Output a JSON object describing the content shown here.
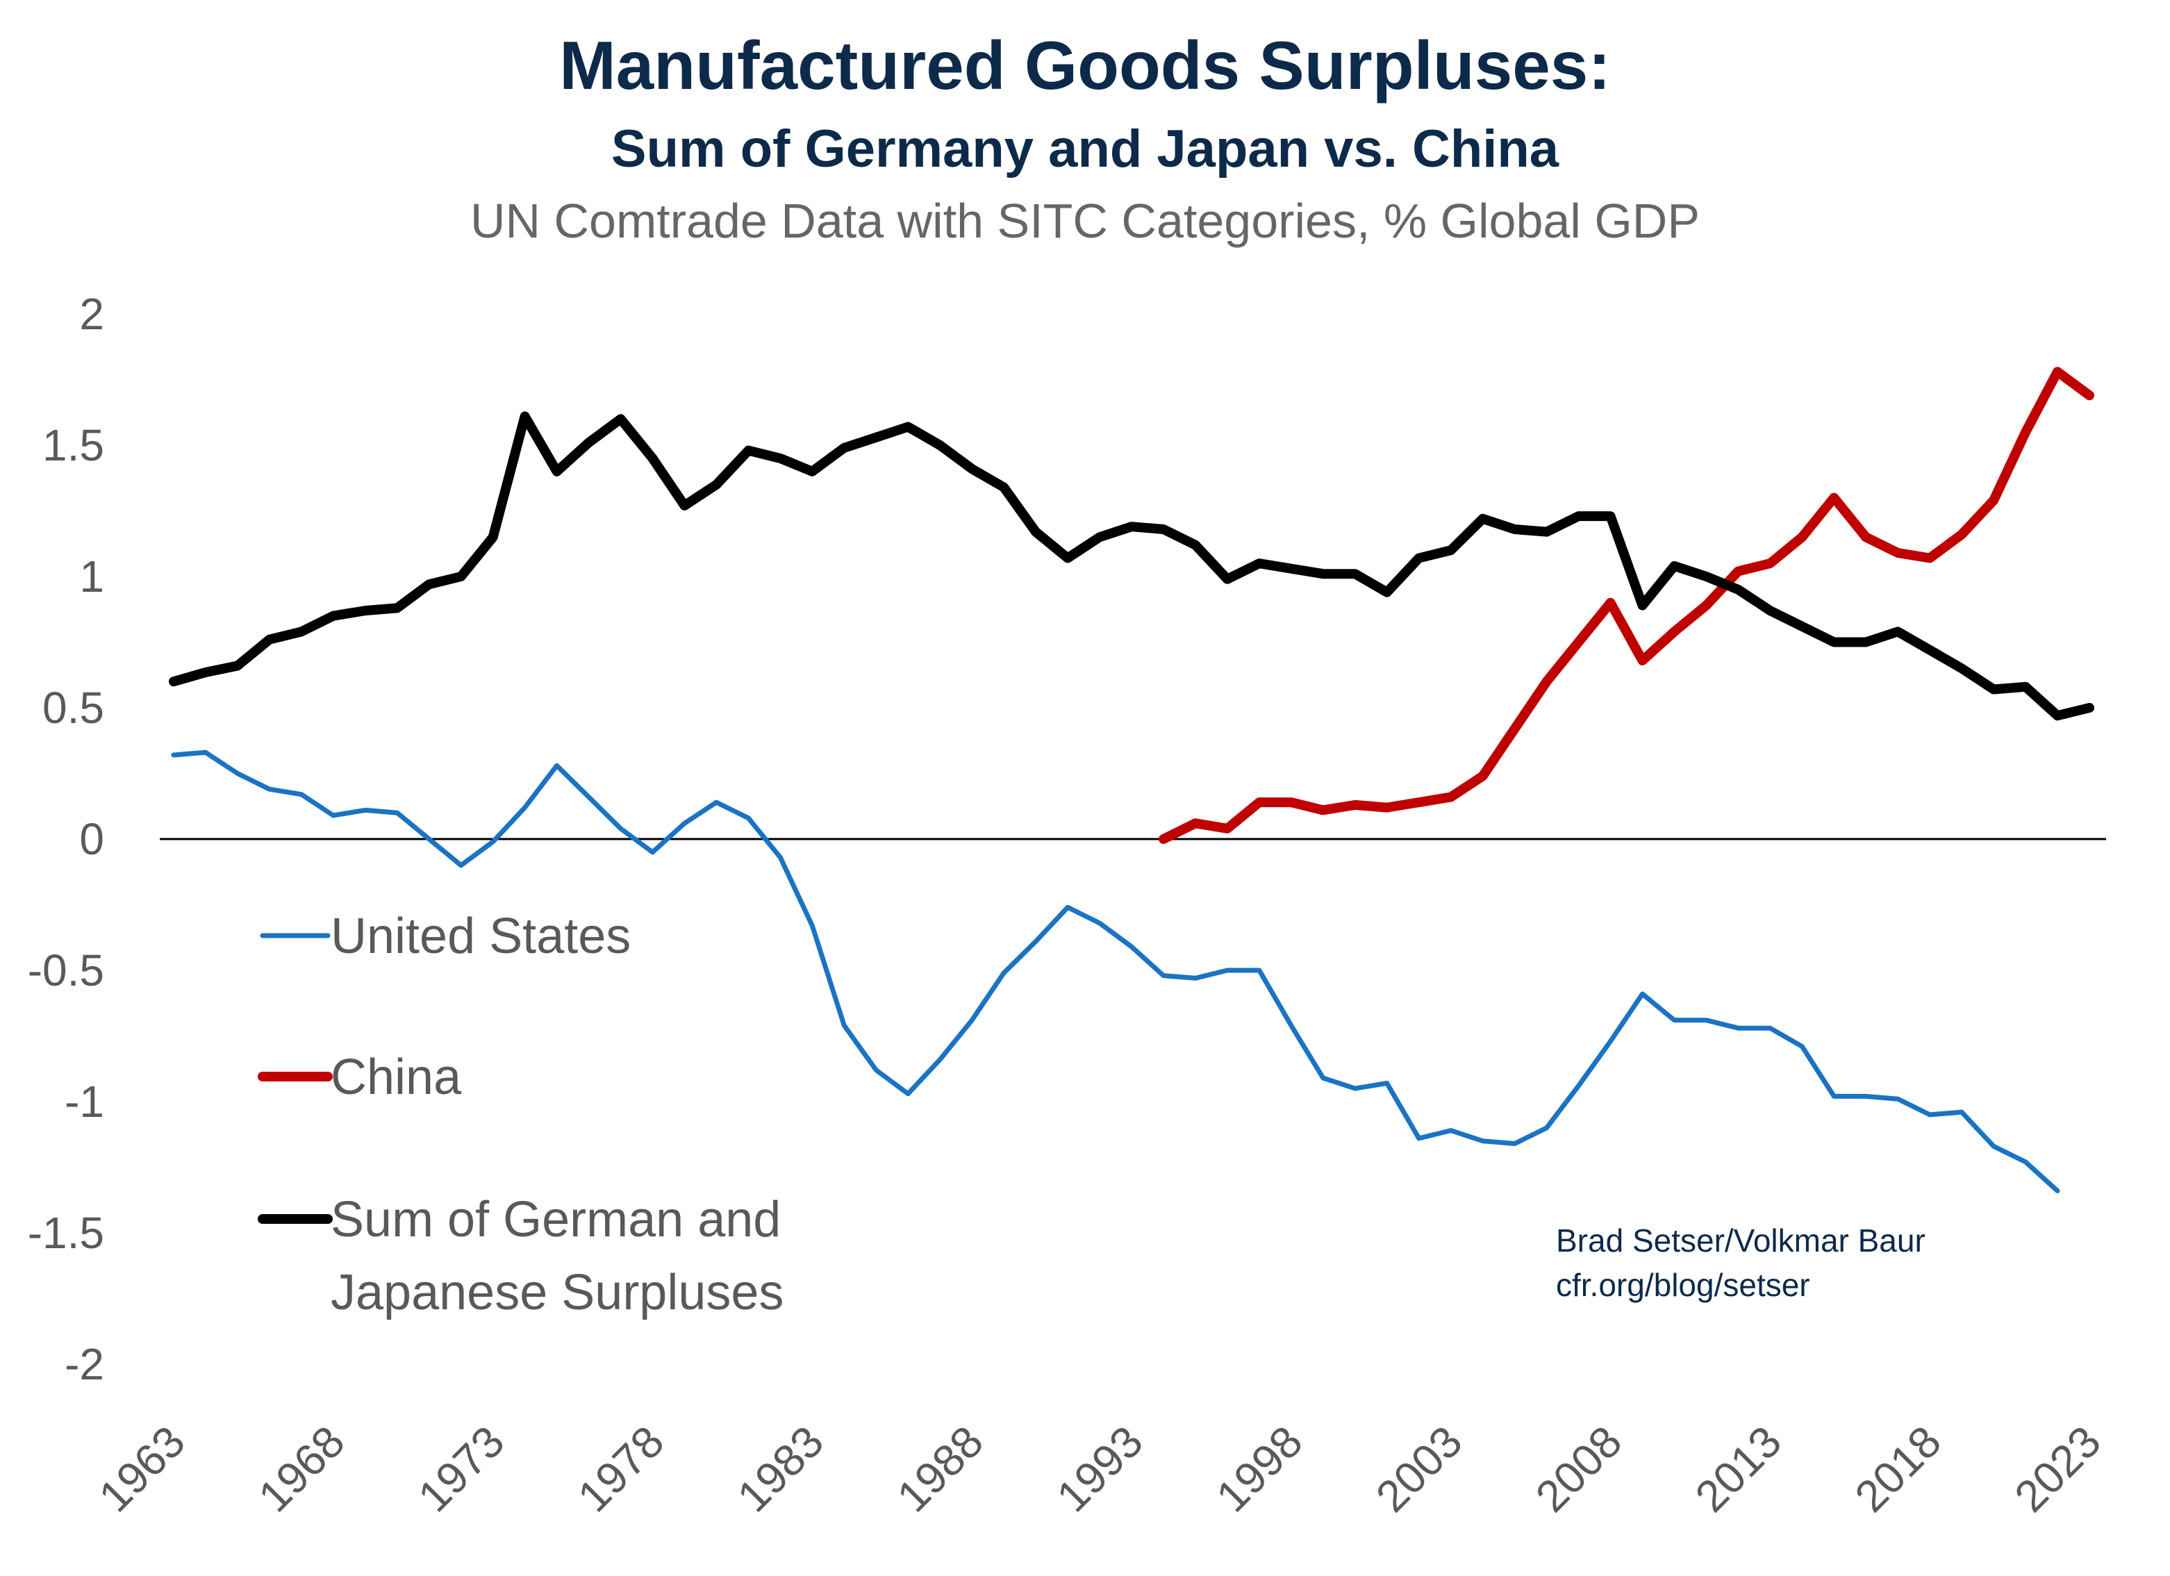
{
  "chart_data": {
    "type": "line",
    "title": "Manufactured Goods Surpluses:",
    "subtitle": "Sum of Germany and Japan vs. China",
    "subtitle2": "UN Comtrade Data with SITC Categories, % Global GDP",
    "xlabel": "",
    "ylabel": "",
    "xlim": [
      1963,
      2023
    ],
    "ylim": [
      -2,
      2
    ],
    "y_ticks": [
      "2",
      "1.5",
      "1",
      "0.5",
      "0",
      "-0.5",
      "-1",
      "-1.5",
      "-2"
    ],
    "x_ticks": [
      "1963",
      "1968",
      "1973",
      "1978",
      "1983",
      "1988",
      "1993",
      "1998",
      "2003",
      "2008",
      "2013",
      "2018",
      "2023"
    ],
    "grid": false,
    "zero_line": true,
    "legend_placement": "left",
    "series": [
      {
        "name": "United States",
        "color": "#1a73c3",
        "start_year": 1963,
        "values": [
          0.32,
          0.33,
          0.25,
          0.19,
          0.17,
          0.09,
          0.11,
          0.1,
          0.0,
          -0.1,
          -0.01,
          0.12,
          0.28,
          0.16,
          0.04,
          -0.05,
          0.06,
          0.14,
          0.08,
          -0.07,
          -0.33,
          -0.71,
          -0.88,
          -0.97,
          -0.84,
          -0.69,
          -0.51,
          -0.39,
          -0.26,
          -0.32,
          -0.41,
          -0.52,
          -0.53,
          -0.5,
          -0.5,
          -0.71,
          -0.91,
          -0.95,
          -0.93,
          -1.14,
          -1.11,
          -1.15,
          -1.16,
          -1.1,
          -0.94,
          -0.77,
          -0.59,
          -0.69,
          -0.69,
          -0.72,
          -0.72,
          -0.79,
          -0.98,
          -0.98,
          -0.99,
          -1.05,
          -1.04,
          -1.17,
          -1.23,
          -1.34
        ]
      },
      {
        "name": "China",
        "color": "#c00000",
        "start_year": 1994,
        "values": [
          0.0,
          0.06,
          0.04,
          0.14,
          0.14,
          0.11,
          0.13,
          0.12,
          0.14,
          0.16,
          0.24,
          0.42,
          0.6,
          0.75,
          0.9,
          0.68,
          0.79,
          0.89,
          1.02,
          1.05,
          1.15,
          1.3,
          1.15,
          1.09,
          1.07,
          1.16,
          1.29,
          1.55,
          1.78,
          1.69
        ]
      },
      {
        "name": "Sum of German and Japanese Surpluses",
        "name_lines": [
          "Sum of German and",
          "Japanese Surpluses"
        ],
        "color": "#000000",
        "start_year": 1963,
        "values": [
          0.6,
          0.635,
          0.66,
          0.76,
          0.79,
          0.85,
          0.87,
          0.88,
          0.97,
          1.0,
          1.15,
          1.61,
          1.4,
          1.51,
          1.6,
          1.45,
          1.27,
          1.35,
          1.48,
          1.45,
          1.4,
          1.49,
          1.53,
          1.57,
          1.5,
          1.41,
          1.34,
          1.17,
          1.07,
          1.15,
          1.19,
          1.18,
          1.12,
          0.99,
          1.05,
          1.03,
          1.01,
          1.01,
          0.94,
          1.07,
          1.1,
          1.22,
          1.18,
          1.17,
          1.23,
          1.23,
          0.89,
          1.04,
          1.0,
          0.95,
          0.87,
          0.81,
          0.75,
          0.75,
          0.79,
          0.72,
          0.65,
          0.57,
          0.58,
          0.47,
          0.5
        ]
      }
    ],
    "credit": [
      "Brad Setser/Volkmar Baur",
      "cfr.org/blog/setser"
    ]
  }
}
